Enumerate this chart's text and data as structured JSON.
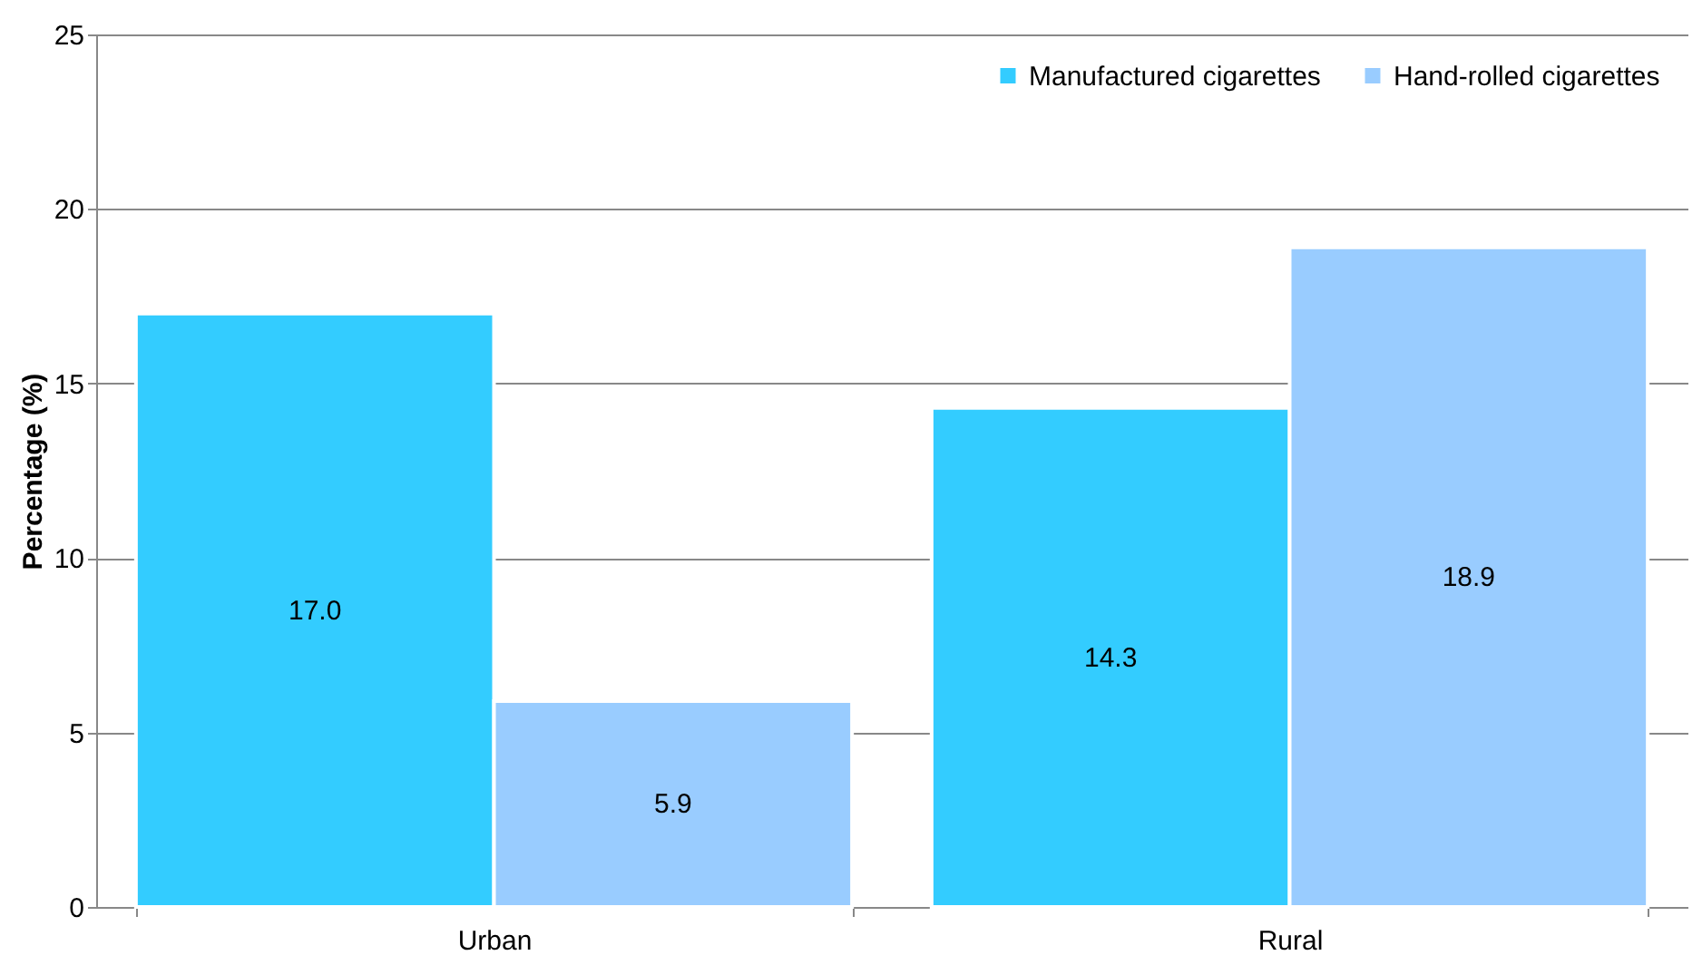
{
  "chart_data": {
    "type": "bar",
    "ylabel": "Percentage (%)",
    "categories": [
      "Urban",
      "Rural"
    ],
    "series": [
      {
        "name": "Manufactured cigarettes",
        "color": "#33ccff",
        "values": [
          17.0,
          14.3
        ],
        "value_labels": [
          "17.0",
          "14.3"
        ]
      },
      {
        "name": "Hand-rolled cigarettes",
        "color": "#99ccff",
        "values": [
          5.9,
          18.9
        ],
        "value_labels": [
          "5.9",
          "18.9"
        ]
      }
    ],
    "ylim": [
      0,
      25
    ],
    "yticks": [
      0,
      5,
      10,
      15,
      20,
      25
    ],
    "grid": "y",
    "legend": "top right"
  }
}
